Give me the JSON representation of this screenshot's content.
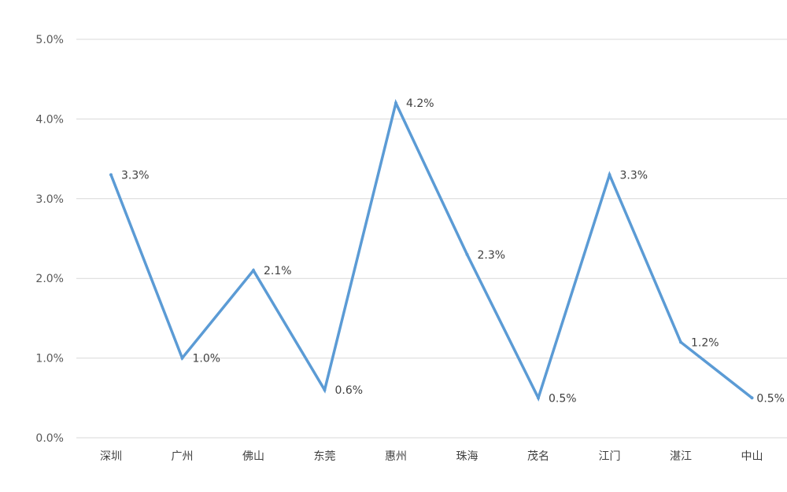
{
  "chart_data": {
    "type": "line",
    "title": "",
    "xlabel": "",
    "ylabel": "",
    "categories": [
      "深圳",
      "广州",
      "佛山",
      "东莞",
      "惠州",
      "珠海",
      "茂名",
      "江门",
      "湛江",
      "中山"
    ],
    "series": [
      {
        "values": [
          3.3,
          1.0,
          2.1,
          0.6,
          4.2,
          2.3,
          0.5,
          3.3,
          1.2,
          0.5
        ],
        "data_labels": [
          "3.3%",
          "1.0%",
          "2.1%",
          "0.6%",
          "4.2%",
          "2.3%",
          "0.5%",
          "3.3%",
          "1.2%",
          "0.5%"
        ],
        "color": "#5B9BD5"
      }
    ],
    "ylim": [
      0,
      5
    ],
    "yticks": [
      "0.0%",
      "1.0%",
      "2.0%",
      "3.0%",
      "4.0%",
      "5.0%"
    ],
    "grid": true,
    "legend": "none",
    "gridline_color": "#D9D9D9"
  }
}
